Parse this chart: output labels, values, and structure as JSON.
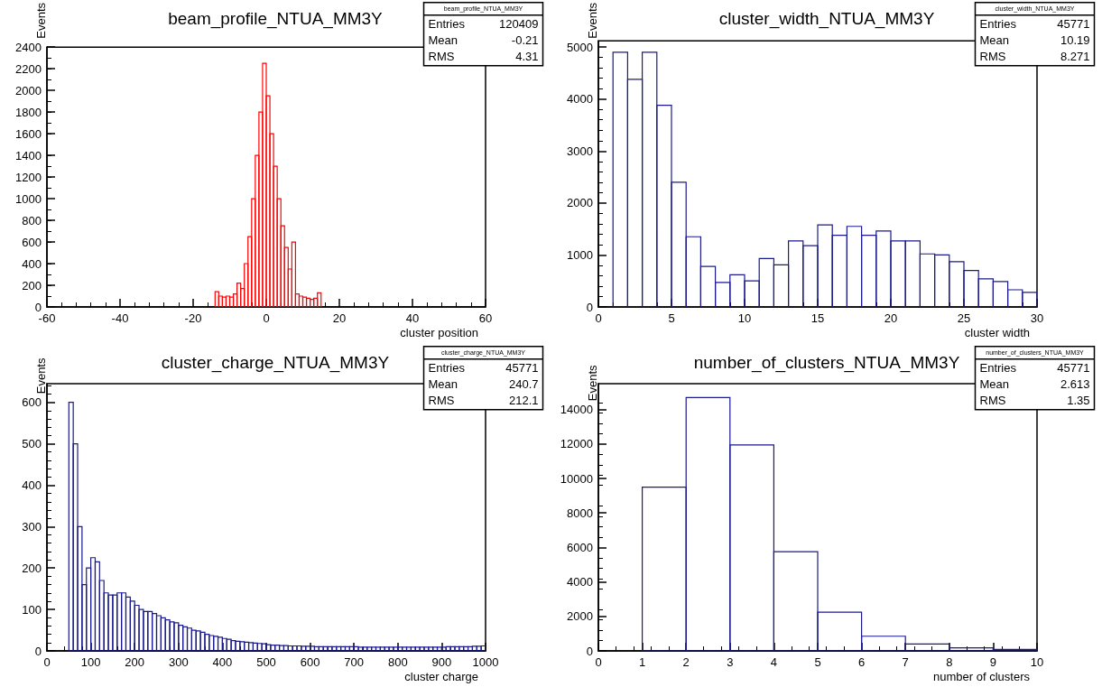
{
  "chart_data": [
    {
      "type": "histogram",
      "title": "beam_profile_NTUA_MM3Y",
      "xlabel": "cluster position",
      "ylabel": "Events",
      "color": "#ff0000",
      "bins": [
        -14,
        -13,
        -12,
        -11,
        -10,
        -9,
        -8,
        -7,
        -6,
        -5,
        -4,
        -3,
        -2,
        -1,
        0,
        1,
        2,
        3,
        4,
        5,
        6,
        7,
        8,
        9,
        10,
        11,
        12,
        13,
        14,
        15
      ],
      "values": [
        140,
        100,
        90,
        100,
        90,
        120,
        220,
        170,
        400,
        650,
        1000,
        1400,
        1800,
        2250,
        1950,
        1600,
        1300,
        1000,
        750,
        550,
        350,
        600,
        120,
        100,
        90,
        80,
        70,
        80,
        130
      ],
      "xlim": [
        -60,
        60
      ],
      "xticks": [
        -60,
        -40,
        -20,
        0,
        20,
        40,
        60
      ],
      "ylim": [
        0,
        2400
      ],
      "yticks": [
        0,
        200,
        400,
        600,
        800,
        1000,
        1200,
        1400,
        1600,
        1800,
        2000,
        2200,
        2400
      ],
      "annotations": [
        "beam_profile_NTUA_MM3Y",
        "Entries 120409",
        "Mean -0.21",
        "RMS 4.31"
      ]
    },
    {
      "type": "histogram",
      "title": "cluster_width_NTUA_MM3Y",
      "xlabel": "cluster width",
      "ylabel": "Events",
      "color": "#1a1a8c",
      "bins": [
        1,
        2,
        3,
        4,
        5,
        6,
        7,
        8,
        9,
        10,
        11,
        12,
        13,
        14,
        15,
        16,
        17,
        18,
        19,
        20,
        21,
        22,
        23,
        24,
        25,
        26,
        27,
        28,
        29,
        30
      ],
      "values": [
        4900,
        4380,
        4900,
        3880,
        2400,
        1350,
        780,
        470,
        620,
        500,
        930,
        810,
        1270,
        1180,
        1580,
        1380,
        1550,
        1380,
        1460,
        1270,
        1270,
        1020,
        1000,
        870,
        700,
        540,
        490,
        330,
        280
      ],
      "xlim": [
        0,
        30
      ],
      "xticks": [
        0,
        5,
        10,
        15,
        20,
        25,
        30
      ],
      "ylim": [
        0,
        5120
      ],
      "yticks": [
        0,
        1000,
        2000,
        3000,
        4000,
        5000
      ],
      "annotations": [
        "cluster_width_NTUA_MM3Y",
        "Entries 45771",
        "Mean 10.19",
        "RMS 8.271"
      ]
    },
    {
      "type": "histogram",
      "title": "cluster_charge_NTUA_MM3Y",
      "xlabel": "cluster charge",
      "ylabel": "Events",
      "color": "#1a1a8c",
      "bins": [
        50,
        60,
        70,
        80,
        90,
        100,
        110,
        120,
        130,
        140,
        150,
        160,
        170,
        180,
        190,
        200,
        210,
        220,
        230,
        240,
        250,
        260,
        270,
        280,
        290,
        300,
        310,
        320,
        330,
        340,
        350,
        360,
        370,
        380,
        390,
        400,
        410,
        420,
        430,
        440,
        450,
        460,
        470,
        480,
        490,
        500,
        510,
        520,
        530,
        540,
        550,
        560,
        570,
        580,
        590,
        600,
        610,
        620,
        630,
        640,
        650,
        660,
        670,
        680,
        690,
        700,
        710,
        720,
        730,
        740,
        750,
        760,
        770,
        780,
        790,
        800,
        810,
        820,
        830,
        840,
        850,
        860,
        870,
        880,
        890,
        900,
        910,
        920,
        930,
        940,
        950,
        960,
        970,
        980,
        990,
        1000
      ],
      "values": [
        600,
        500,
        300,
        160,
        200,
        225,
        215,
        170,
        140,
        135,
        135,
        140,
        140,
        130,
        120,
        110,
        100,
        95,
        95,
        90,
        85,
        80,
        75,
        70,
        68,
        62,
        58,
        55,
        50,
        48,
        45,
        40,
        37,
        35,
        33,
        30,
        28,
        25,
        23,
        22,
        21,
        20,
        19,
        18,
        17,
        15,
        14,
        14,
        13,
        13,
        12,
        12,
        12,
        11,
        11,
        11,
        10,
        10,
        10,
        10,
        10,
        10,
        10,
        10,
        10,
        10,
        9,
        9,
        9,
        9,
        9,
        9,
        9,
        9,
        9,
        9,
        9,
        9,
        9,
        9,
        9,
        9,
        9,
        9,
        9,
        9,
        10,
        10,
        10,
        10,
        10,
        10,
        11,
        11,
        12
      ],
      "xlim": [
        0,
        1000
      ],
      "xticks": [
        0,
        100,
        200,
        300,
        400,
        500,
        600,
        700,
        800,
        900,
        1000
      ],
      "ylim": [
        0,
        645
      ],
      "yticks": [
        0,
        100,
        200,
        300,
        400,
        500,
        600
      ],
      "annotations": [
        "cluster_charge_NTUA_MM3Y",
        "Entries 45771",
        "Mean 240.7",
        "RMS 212.1"
      ]
    },
    {
      "type": "histogram",
      "title": "number_of_clusters_NTUA_MM3Y",
      "xlabel": "number of clusters",
      "ylabel": "Events",
      "color": "#1a1a8c",
      "bins": [
        1,
        2,
        3,
        4,
        5,
        6,
        7,
        8,
        9,
        10
      ],
      "values": [
        9500,
        14700,
        11950,
        5750,
        2250,
        850,
        400,
        180,
        90
      ],
      "xlim": [
        0,
        10
      ],
      "xticks": [
        0,
        1,
        2,
        3,
        4,
        5,
        6,
        7,
        8,
        9,
        10
      ],
      "ylim": [
        0,
        15500
      ],
      "yticks": [
        0,
        2000,
        4000,
        6000,
        8000,
        10000,
        12000,
        14000
      ],
      "annotations": [
        "number_of_clusters_NTUA_MM3Y",
        "Entries 45771",
        "Mean 2.613",
        "RMS 1.35"
      ]
    }
  ]
}
